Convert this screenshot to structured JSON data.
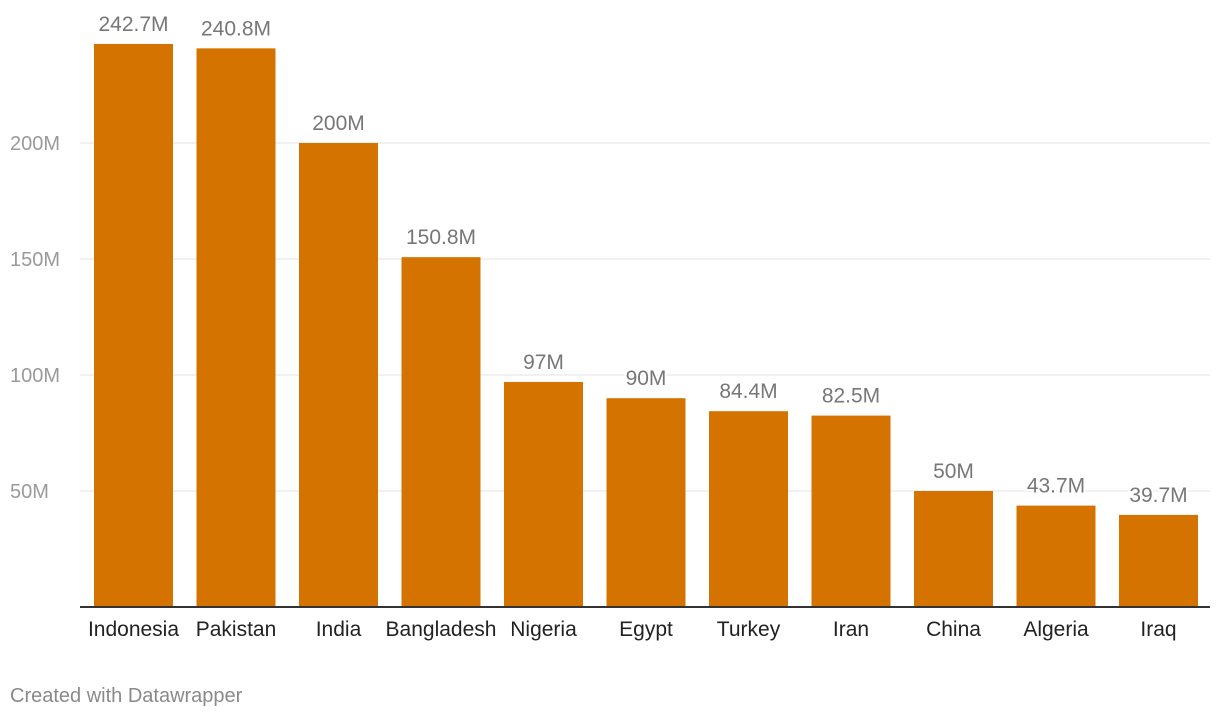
{
  "chart_data": {
    "type": "bar",
    "categories": [
      "Indonesia",
      "Pakistan",
      "India",
      "Bangladesh",
      "Nigeria",
      "Egypt",
      "Turkey",
      "Iran",
      "China",
      "Algeria",
      "Iraq"
    ],
    "values": [
      242.7,
      240.8,
      200,
      150.8,
      97,
      90,
      84.4,
      82.5,
      50,
      43.7,
      39.7
    ],
    "value_labels": [
      "242.7M",
      "240.8M",
      "200M",
      "150.8M",
      "97M",
      "90M",
      "84.4M",
      "82.5M",
      "50M",
      "43.7M",
      "39.7M"
    ],
    "yticks": [
      50,
      100,
      150,
      200
    ],
    "ytick_labels": [
      "50M",
      "100M",
      "150M",
      "200M"
    ],
    "ylim": [
      0,
      260
    ],
    "grid": true,
    "bar_color": "#d47300",
    "tick_color": "#9a9a9a",
    "label_color": "#777777",
    "category_color": "#222222"
  },
  "footer": {
    "credit": "Created with Datawrapper"
  }
}
